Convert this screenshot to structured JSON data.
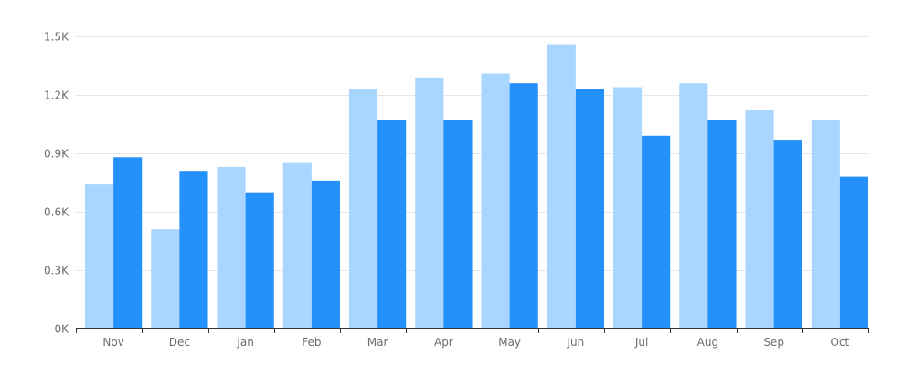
{
  "chart_data": {
    "type": "bar",
    "title": "",
    "xlabel": "",
    "ylabel": "",
    "categories": [
      "Nov",
      "Dec",
      "Jan",
      "Feb",
      "Mar",
      "Apr",
      "May",
      "Jun",
      "Jul",
      "Aug",
      "Sep",
      "Oct"
    ],
    "series": [
      {
        "color": "#a9d6ff",
        "values": [
          740,
          510,
          830,
          850,
          1230,
          1290,
          1310,
          1460,
          1240,
          1260,
          1120,
          1070
        ]
      },
      {
        "color": "#2390fb",
        "values": [
          880,
          810,
          700,
          760,
          1070,
          1070,
          1260,
          1230,
          990,
          1070,
          970,
          780
        ]
      }
    ],
    "ylim": [
      0,
      1500
    ],
    "yticks": [
      0,
      300,
      600,
      900,
      1200,
      1500
    ],
    "ytick_labels": [
      "0K",
      "0.3K",
      "0.6K",
      "0.9K",
      "1.2K",
      "1.5K"
    ],
    "grid": true,
    "legend": "none"
  }
}
